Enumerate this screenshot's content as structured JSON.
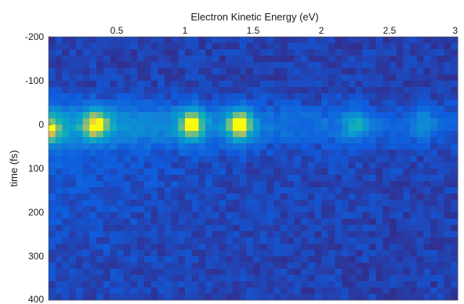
{
  "chart_data": {
    "type": "heatmap",
    "title": "",
    "xlabel": "Electron Kinetic Energy (eV)",
    "ylabel": "time (fs)",
    "x_axis_position": "top",
    "xlim": [
      0,
      3
    ],
    "ylim": [
      -200,
      400
    ],
    "y_reversed": true,
    "xticks": [
      0.5,
      1,
      1.5,
      2,
      2.5,
      3
    ],
    "xtick_labels": [
      "0.5",
      "1",
      "1.5",
      "2",
      "2.5",
      "3"
    ],
    "yticks": [
      -200,
      -100,
      0,
      100,
      200,
      300,
      400
    ],
    "ytick_labels": [
      "-200",
      "-100",
      "0",
      "100",
      "200",
      "300",
      "400"
    ],
    "colormap": "parula",
    "intensity_range": [
      0,
      1
    ],
    "background_level": 0.05,
    "grid": false,
    "peaks": [
      {
        "energy": 0.0,
        "time": 10,
        "intensity": 0.55
      },
      {
        "energy": 0.35,
        "time": 0,
        "intensity": 0.72
      },
      {
        "energy": 1.05,
        "time": 0,
        "intensity": 0.85
      },
      {
        "energy": 1.4,
        "time": 0,
        "intensity": 0.9
      },
      {
        "energy": 2.25,
        "time": 0,
        "intensity": 0.35
      },
      {
        "energy": 2.75,
        "time": 0,
        "intensity": 0.2
      }
    ]
  }
}
